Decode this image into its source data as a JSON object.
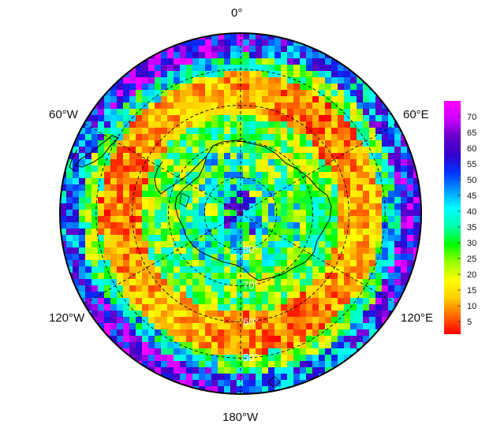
{
  "map": {
    "projection": "south-polar-stereographic",
    "lon_labels": [
      "0°",
      "60°E",
      "120°E",
      "180°W",
      "120°W",
      "60°W"
    ],
    "lat_labels": [
      "80°",
      "70°",
      "60°",
      "50°"
    ],
    "lat_circles": [
      80,
      70,
      60,
      50
    ],
    "meridians_deg": [
      0,
      60,
      120,
      180,
      240,
      300
    ],
    "grid": "dashed"
  },
  "colorbar": {
    "min": 1,
    "max": 75,
    "ticks": [
      5,
      10,
      15,
      20,
      25,
      30,
      35,
      40,
      45,
      50,
      55,
      60,
      65,
      70
    ],
    "tick_labels": [
      "5",
      "10",
      "15",
      "20",
      "25",
      "30",
      "35",
      "40",
      "45",
      "50",
      "55",
      "60",
      "65",
      "70"
    ],
    "colormap": "rainbow",
    "stops": [
      "#ff0000",
      "#ff6600",
      "#ffcc00",
      "#ffff00",
      "#99ff00",
      "#00ff00",
      "#00ffaa",
      "#00ffff",
      "#0099ff",
      "#0033ff",
      "#3300cc",
      "#6600cc",
      "#cc00ff",
      "#ff00ff"
    ]
  },
  "colors": {
    "high_value": "#ff00ff",
    "low_value": "#ff0000",
    "coastline": "#000000",
    "grid": "#000000"
  }
}
